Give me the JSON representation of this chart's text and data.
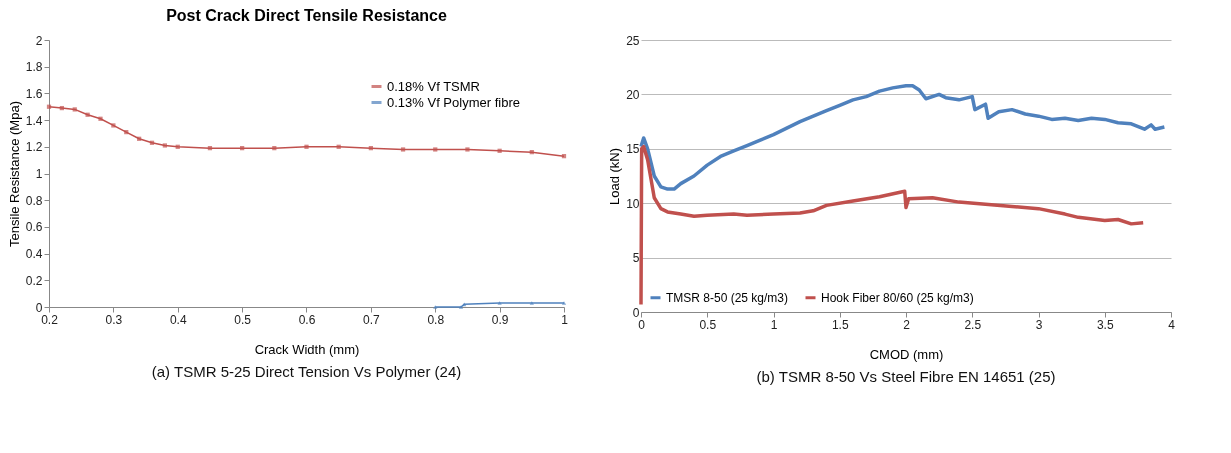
{
  "chart_data": [
    {
      "type": "line",
      "title": "Post Crack Direct Tensile Resistance",
      "xlabel": "Crack Width (mm)",
      "ylabel": "Tensile Resistance (Mpa)",
      "xlim": [
        0.2,
        1
      ],
      "xticks": [
        0.2,
        0.3,
        0.4,
        0.5,
        0.6,
        0.7,
        0.8,
        0.9,
        1
      ],
      "ylim": [
        0,
        2
      ],
      "yticks": [
        0,
        0.2,
        0.4,
        0.6,
        0.8,
        1,
        1.2,
        1.4,
        1.6,
        1.8,
        2
      ],
      "grid": false,
      "legend": "top right",
      "annotations": [
        "(a) TSMR 5-25 Direct Tension Vs Polymer (24)"
      ],
      "series": [
        {
          "name": "0.18% Vf  TSMR",
          "color": "#c0504d",
          "marker": "square",
          "x": [
            0.2,
            0.22,
            0.24,
            0.26,
            0.28,
            0.3,
            0.32,
            0.34,
            0.36,
            0.38,
            0.4,
            0.45,
            0.5,
            0.55,
            0.6,
            0.65,
            0.7,
            0.75,
            0.8,
            0.85,
            0.9,
            0.95,
            1.0
          ],
          "values": [
            1.5,
            1.49,
            1.48,
            1.44,
            1.41,
            1.36,
            1.31,
            1.26,
            1.23,
            1.21,
            1.2,
            1.19,
            1.19,
            1.19,
            1.2,
            1.2,
            1.19,
            1.18,
            1.18,
            1.18,
            1.17,
            1.16,
            1.13
          ]
        },
        {
          "name": "0.13% Vf  Polymer fibre",
          "color": "#4f81bd",
          "marker": "triangle",
          "x": [
            0.8,
            0.84,
            0.845,
            0.9,
            0.95,
            1.0
          ],
          "values": [
            0.0,
            0.0,
            0.02,
            0.03,
            0.03,
            0.03
          ]
        }
      ]
    },
    {
      "type": "line",
      "xlabel": "CMOD (mm)",
      "ylabel": "Load (kN)",
      "xlim": [
        0,
        4
      ],
      "xticks": [
        0,
        0.5,
        1,
        1.5,
        2,
        2.5,
        3,
        3.5,
        4
      ],
      "ylim": [
        0,
        25
      ],
      "yticks": [
        0,
        5,
        10,
        15,
        20,
        25
      ],
      "grid": "y",
      "legend": "bottom",
      "annotations": [
        "(b) TSMR 8-50 Vs Steel Fibre EN 14651 (25)"
      ],
      "series": [
        {
          "name": "TMSR 8-50 (25 kg/m3)",
          "color": "#4f81bd",
          "marker": "none",
          "x": [
            0,
            0.02,
            0.05,
            0.1,
            0.15,
            0.2,
            0.25,
            0.3,
            0.4,
            0.5,
            0.6,
            0.7,
            0.8,
            0.9,
            1.0,
            1.1,
            1.2,
            1.3,
            1.4,
            1.5,
            1.6,
            1.7,
            1.8,
            1.9,
            2.0,
            2.05,
            2.1,
            2.15,
            2.25,
            2.3,
            2.4,
            2.5,
            2.52,
            2.6,
            2.62,
            2.7,
            2.8,
            2.9,
            3.0,
            3.1,
            3.2,
            3.3,
            3.4,
            3.5,
            3.6,
            3.7,
            3.8,
            3.85,
            3.88,
            3.95
          ],
          "values": [
            15.2,
            16,
            15,
            12.5,
            11.5,
            11.3,
            11.3,
            11.8,
            12.5,
            13.5,
            14.3,
            14.8,
            15.3,
            15.8,
            16.3,
            16.9,
            17.5,
            18,
            18.5,
            19,
            19.5,
            19.8,
            20.3,
            20.6,
            20.8,
            20.8,
            20.4,
            19.6,
            20,
            19.7,
            19.5,
            19.8,
            18.6,
            19.1,
            17.8,
            18.4,
            18.6,
            18.2,
            18,
            17.7,
            17.8,
            17.6,
            17.8,
            17.7,
            17.4,
            17.3,
            16.8,
            17.2,
            16.8,
            17
          ]
        },
        {
          "name": "Hook Fiber 80/60 (25 kg/m3)",
          "color": "#c0504d",
          "marker": "none",
          "x": [
            0,
            0.005,
            0.02,
            0.05,
            0.1,
            0.15,
            0.2,
            0.3,
            0.4,
            0.5,
            0.7,
            0.8,
            1.0,
            1.2,
            1.3,
            1.4,
            1.6,
            1.8,
            1.99,
            2.0,
            2.02,
            2.2,
            2.4,
            2.6,
            2.8,
            3.0,
            3.2,
            3.3,
            3.5,
            3.6,
            3.7,
            3.79
          ],
          "values": [
            0.7,
            15,
            15.2,
            14,
            10.5,
            9.5,
            9.2,
            9,
            8.8,
            8.9,
            9,
            8.9,
            9,
            9.1,
            9.3,
            9.8,
            10.2,
            10.6,
            11.1,
            9.6,
            10.4,
            10.5,
            10.1,
            9.9,
            9.7,
            9.5,
            9.0,
            8.7,
            8.4,
            8.5,
            8.1,
            8.2
          ]
        }
      ]
    }
  ]
}
